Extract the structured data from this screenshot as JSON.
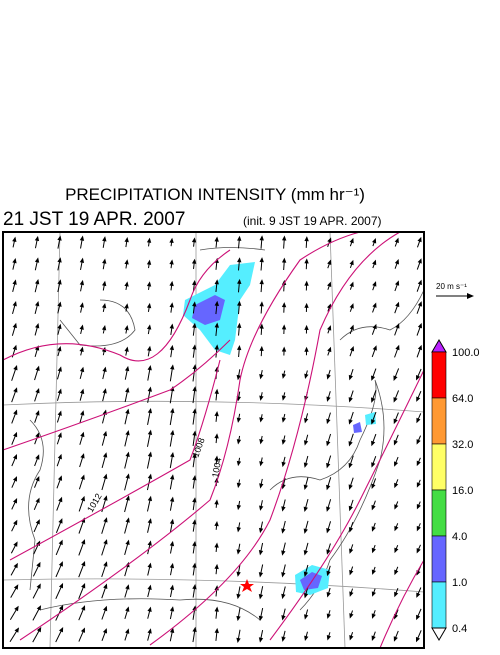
{
  "header": {
    "title": "PRECIPITATION INTENSITY (mm hr⁻¹)",
    "time": "21 JST 19 APR. 2007",
    "init": "(init. 9 JST 19 APR. 2007)"
  },
  "reference_vector": {
    "label": "20 m s⁻¹"
  },
  "colorbar": {
    "labels": [
      "100.0",
      "64.0",
      "32.0",
      "16.0",
      "4.0",
      "1.0",
      "0.4"
    ],
    "colors": [
      "#ff0000",
      "#ff9933",
      "#ffff66",
      "#44dd44",
      "#6666ff",
      "#55eeff"
    ],
    "over_color": "#bb22ff",
    "under_color": "#ffffff"
  },
  "contour_labels": [
    "1012",
    "1008",
    "1004"
  ]
}
